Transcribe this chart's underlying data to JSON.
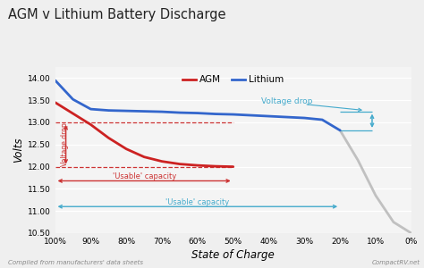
{
  "title": "AGM v Lithium Battery Discharge",
  "xlabel": "State of Charge",
  "ylabel": "Volts",
  "footer_left": "Compiled from manufacturers' data sheets",
  "footer_right": "CompactRV.net",
  "ylim": [
    10.5,
    14.25
  ],
  "yticks": [
    10.5,
    11.0,
    11.5,
    12.0,
    12.5,
    13.0,
    13.5,
    14.0
  ],
  "xticks": [
    0,
    10,
    20,
    30,
    40,
    50,
    60,
    70,
    80,
    90,
    100
  ],
  "xtick_labels": [
    "0%",
    "10%",
    "20%",
    "30%",
    "40%",
    "50%",
    "60%",
    "70%",
    "80%",
    "90%",
    "100%"
  ],
  "bg_color": "#efefef",
  "plot_bg_color": "#f4f4f4",
  "agm_color": "#cc2222",
  "lithium_color": "#3366cc",
  "grey_color": "#c0c0c0",
  "ann_red": "#cc3333",
  "ann_blue": "#44aacc",
  "agm_x": [
    100,
    95,
    90,
    85,
    80,
    75,
    70,
    65,
    60,
    55,
    50
  ],
  "agm_y": [
    13.45,
    13.2,
    12.95,
    12.65,
    12.4,
    12.22,
    12.12,
    12.06,
    12.03,
    12.01,
    12.0
  ],
  "lithium_x": [
    100,
    95,
    90,
    85,
    80,
    75,
    70,
    65,
    60,
    55,
    50,
    45,
    40,
    35,
    30,
    25,
    20
  ],
  "lithium_y": [
    13.95,
    13.52,
    13.3,
    13.27,
    13.26,
    13.25,
    13.24,
    13.22,
    13.21,
    13.19,
    13.18,
    13.16,
    13.14,
    13.12,
    13.1,
    13.06,
    12.82
  ],
  "grey_x": [
    20,
    15,
    10,
    5,
    0
  ],
  "grey_y": [
    12.82,
    12.15,
    11.35,
    10.75,
    10.5
  ],
  "agm_vdrop_x": 97,
  "agm_vdrop_ytop": 13.0,
  "agm_vdrop_ybot": 12.0,
  "li_vdrop_x": 11,
  "li_vdrop_ytop": 13.25,
  "li_vdrop_ybot": 12.82,
  "li_htop_x1": 20,
  "li_htop_x2": 11,
  "li_hbot_x1": 20,
  "li_hbot_x2": 11,
  "agm_usable_y": 11.68,
  "agm_usable_x1": 100,
  "agm_usable_x2": 50,
  "li_usable_y": 11.1,
  "li_usable_x1": 100,
  "li_usable_x2": 20
}
